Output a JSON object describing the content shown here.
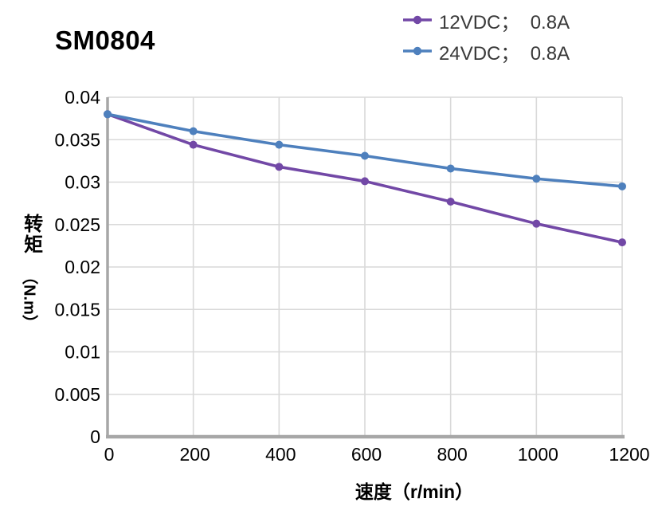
{
  "chart_data": {
    "type": "line",
    "title": "SM0804",
    "x": [
      0,
      200,
      400,
      600,
      800,
      1000,
      1200
    ],
    "series": [
      {
        "name": "12VDC；  0.8A",
        "color": "#7248A6",
        "values": [
          0.038,
          0.0344,
          0.0318,
          0.0301,
          0.0277,
          0.0251,
          0.0229
        ]
      },
      {
        "name": "24VDC；  0.8A",
        "color": "#4E80BD",
        "values": [
          0.038,
          0.036,
          0.0344,
          0.0331,
          0.0316,
          0.0304,
          0.0295
        ]
      }
    ],
    "xlabel": "速度（r/min）",
    "ylabel": "转矩（N.m）",
    "ylabel_cjk": "转矩",
    "ylabel_unit": "（N.m）",
    "xlim": [
      0,
      1200
    ],
    "ylim": [
      0,
      0.04
    ],
    "xticks": [
      0,
      200,
      400,
      600,
      800,
      1000,
      1200
    ],
    "xtick_labels": [
      "0",
      "200",
      "400",
      "600",
      "800",
      "1000",
      "1200"
    ],
    "yticks": [
      0,
      0.005,
      0.01,
      0.015,
      0.02,
      0.025,
      0.03,
      0.035,
      0.04
    ],
    "ytick_labels": [
      "0",
      "0.005",
      "0.01",
      "0.015",
      "0.02",
      "0.025",
      "0.03",
      "0.035",
      "0.04"
    ],
    "grid": true,
    "legend_position": "top-right",
    "marker": "circle",
    "colors": {
      "gridline": "#D9D9D9",
      "axis": "#A7A7A7",
      "tick_text": "#000000",
      "legend_text": "#3A3A3A",
      "background": "#FFFFFF"
    }
  }
}
